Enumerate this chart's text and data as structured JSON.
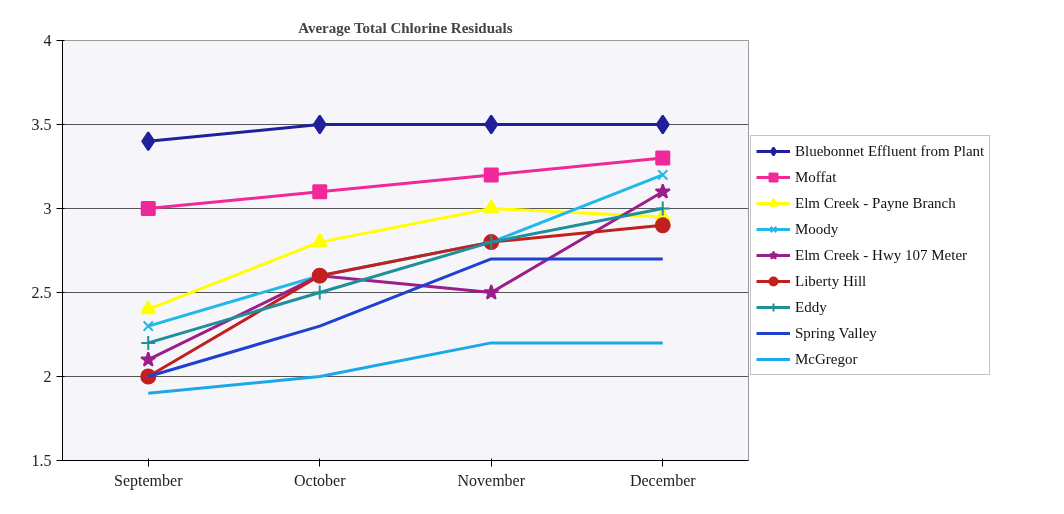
{
  "chart_data": {
    "type": "line",
    "title": "Average Total Chlorine Residuals",
    "categories": [
      "September",
      "October",
      "November",
      "December"
    ],
    "ylim": [
      1.5,
      4
    ],
    "yticks": [
      1.5,
      2,
      2.5,
      3,
      3.5,
      4
    ],
    "grid": "y",
    "legend": "right",
    "line_style": "solid",
    "series": [
      {
        "name": "Bluebonnet Effluent from Plant",
        "color": "#20209a",
        "marker": "diamond",
        "values": [
          3.4,
          3.5,
          3.5,
          3.5
        ]
      },
      {
        "name": "Moffat",
        "color": "#f0289a",
        "marker": "square",
        "values": [
          3.0,
          3.1,
          3.2,
          3.3
        ]
      },
      {
        "name": "Elm Creek - Payne Branch",
        "color": "#ffff00",
        "marker": "triangle",
        "values": [
          2.4,
          2.8,
          3.0,
          2.95
        ]
      },
      {
        "name": "Moody",
        "color": "#22b8e8",
        "marker": "x",
        "values": [
          2.3,
          2.6,
          2.8,
          3.2
        ]
      },
      {
        "name": "Elm Creek - Hwy 107 Meter",
        "color": "#9b1e8a",
        "marker": "star",
        "values": [
          2.1,
          2.6,
          2.5,
          3.1
        ]
      },
      {
        "name": "Liberty Hill",
        "color": "#c0201e",
        "marker": "circle",
        "values": [
          2.0,
          2.6,
          2.8,
          2.9
        ]
      },
      {
        "name": "Eddy",
        "color": "#1f8f9a",
        "marker": "cross",
        "values": [
          2.2,
          2.5,
          2.8,
          3.0
        ]
      },
      {
        "name": "Spring Valley",
        "color": "#2040d0",
        "marker": "none",
        "values": [
          2.0,
          2.3,
          2.7,
          2.7
        ]
      },
      {
        "name": "McGregor",
        "color": "#1aa8e8",
        "marker": "none",
        "values": [
          1.9,
          2.0,
          2.2,
          2.2
        ]
      }
    ]
  }
}
